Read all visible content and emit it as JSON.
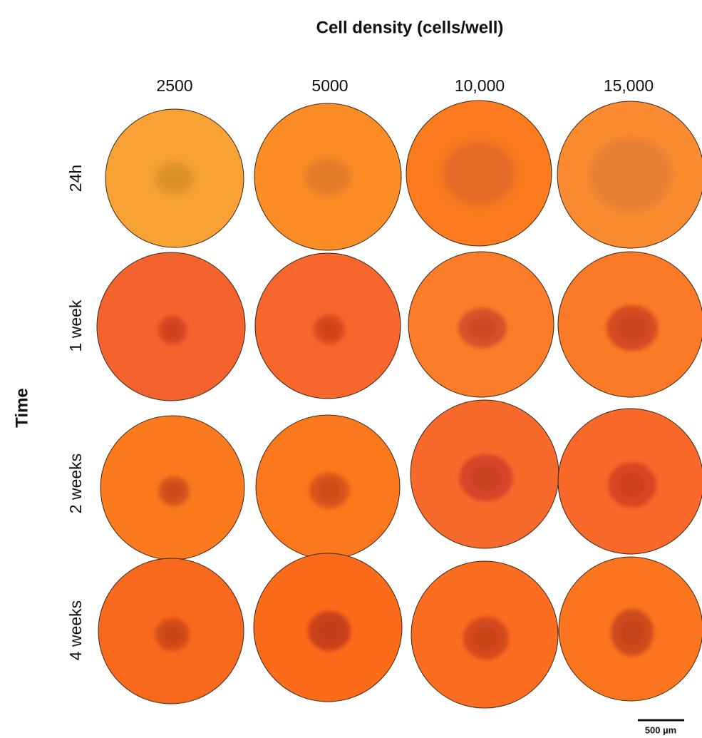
{
  "header": {
    "title": "Cell density (cells/well)"
  },
  "columns": [
    "2500",
    "5000",
    "10,000",
    "15,000"
  ],
  "rows": [
    "24h",
    "1 week",
    "2 weeks",
    "4 weeks"
  ],
  "side_label": "Time",
  "scale_bar": "500 µm"
}
